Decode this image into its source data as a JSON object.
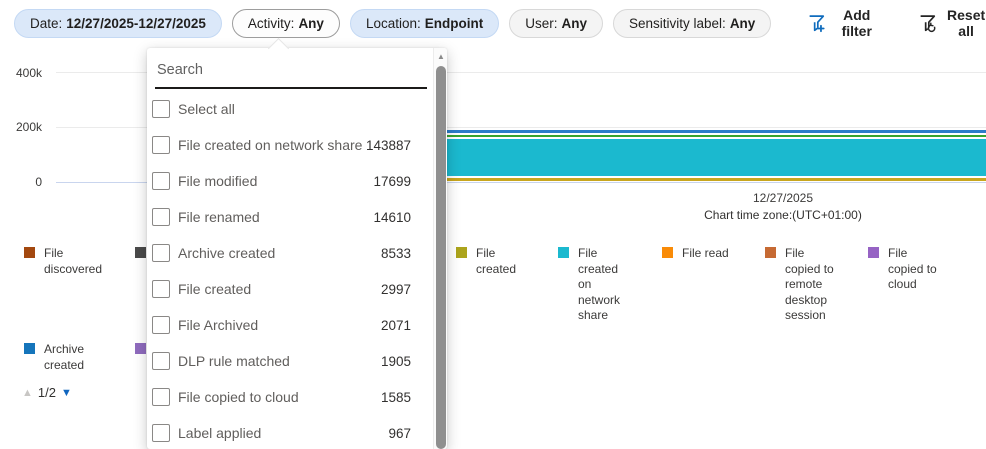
{
  "filters": {
    "pills": [
      {
        "label": "Date:",
        "value": "12/27/2025-12/27/2025",
        "style": "blue"
      },
      {
        "label": "Activity:",
        "value": "Any",
        "style": "open"
      },
      {
        "label": "Location:",
        "value": "Endpoint",
        "style": "blue"
      },
      {
        "label": "User:",
        "value": "Any",
        "style": "plain"
      },
      {
        "label": "Sensitivity label:",
        "value": "Any",
        "style": "plain"
      }
    ],
    "add_filter_label": "Add filter",
    "reset_all_label": "Reset all",
    "add_filter_color": "#0f6cbd",
    "reset_all_color": "#242424"
  },
  "chart": {
    "y_ticks": [
      "400k",
      "200k",
      "0"
    ],
    "x_date_label": "12/27/2025",
    "timezone_label": "Chart time zone:(UTC+01:00)"
  },
  "chart_data": {
    "type": "bar",
    "stacked": true,
    "categories": [
      "12/27/2025"
    ],
    "series": [
      {
        "name": "File created on network share",
        "values": [
          143887
        ],
        "color": "#1bb9cf"
      },
      {
        "name": "File modified",
        "values": [
          17699
        ]
      },
      {
        "name": "File renamed",
        "values": [
          14610
        ]
      },
      {
        "name": "Archive created",
        "values": [
          8533
        ],
        "color": "#1575bb"
      },
      {
        "name": "File created",
        "values": [
          2997
        ],
        "color": "#aca41c"
      },
      {
        "name": "File Archived",
        "values": [
          2071
        ]
      },
      {
        "name": "DLP rule matched",
        "values": [
          1905
        ]
      },
      {
        "name": "File copied to cloud",
        "values": [
          1585
        ],
        "color": "#9663c4"
      },
      {
        "name": "Label applied",
        "values": [
          967
        ]
      }
    ],
    "ylim": [
      0,
      400000
    ],
    "y_tick_labels": [
      "0",
      "200k",
      "400k"
    ],
    "grid": true,
    "legend_position": "bottom",
    "note": "Chart time zone:(UTC+01:00)",
    "bar_segments": [
      {
        "activity": "blue-stripe",
        "color": "#2c7cc9",
        "px": 3
      },
      {
        "activity": "gap",
        "color": "#ffffff",
        "px": 2
      },
      {
        "activity": "green-stripe",
        "color": "#38a32d",
        "px": 2
      },
      {
        "activity": "gap",
        "color": "#ffffff",
        "px": 2
      },
      {
        "activity": "file-created-on-network-share",
        "color": "#1bb9cf",
        "px": 37
      },
      {
        "activity": "gap",
        "color": "#ffffff",
        "px": 2
      },
      {
        "activity": "gold-stripe",
        "color": "#c8a61e",
        "px": 3
      }
    ]
  },
  "legend": {
    "row1": [
      {
        "label": "File discovered",
        "color": "#a3480f"
      },
      {
        "label": "",
        "color": "#4a4a4a"
      },
      {
        "label": "File created",
        "color": "#aca41c"
      },
      {
        "label": "File created on network share",
        "color": "#1bb9cf"
      },
      {
        "label": "File read",
        "color": "#f98b07"
      },
      {
        "label": "File copied to remote desktop session",
        "color": "#c66a33"
      },
      {
        "label": "File copied to cloud",
        "color": "#9663c4"
      }
    ],
    "row2": [
      {
        "label": "Archive created",
        "color": "#1575bb"
      },
      {
        "label": "",
        "color": "#8f6bbe"
      }
    ],
    "pagination": {
      "current": "1/2",
      "up_icon": "▲",
      "down_icon": "▼"
    }
  },
  "dropdown": {
    "search_placeholder": "Search",
    "select_all_label": "Select all",
    "items": [
      {
        "label": "File created on network share",
        "count": "143887"
      },
      {
        "label": "File modified",
        "count": "17699"
      },
      {
        "label": "File renamed",
        "count": "14610"
      },
      {
        "label": "Archive created",
        "count": "8533"
      },
      {
        "label": "File created",
        "count": "2997"
      },
      {
        "label": "File Archived",
        "count": "2071"
      },
      {
        "label": "DLP rule matched",
        "count": "1905"
      },
      {
        "label": "File copied to cloud",
        "count": "1585"
      },
      {
        "label": "Label applied",
        "count": "967"
      }
    ]
  }
}
